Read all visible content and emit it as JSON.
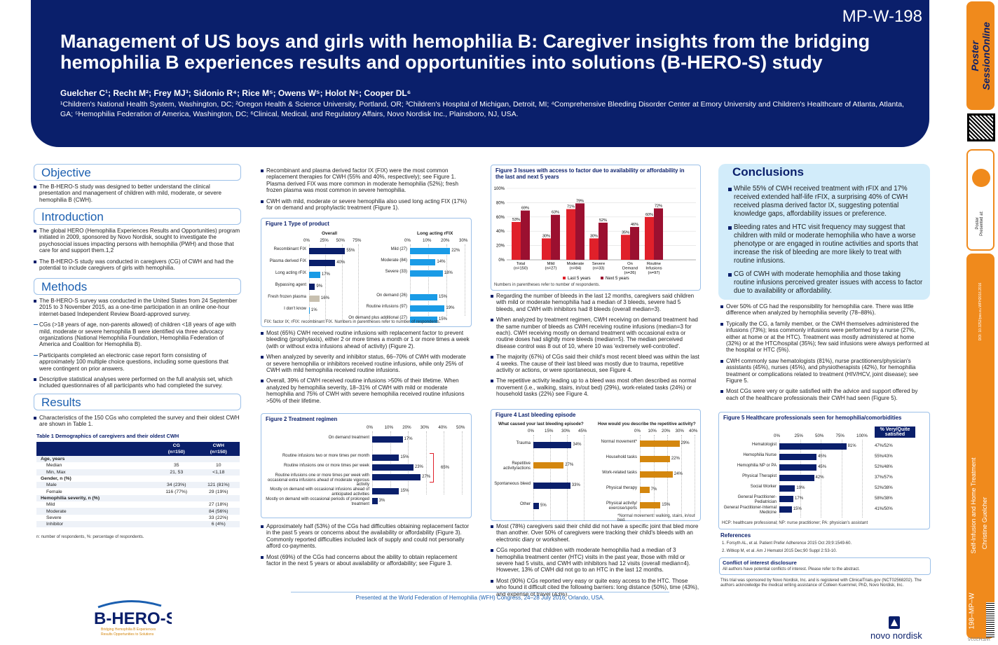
{
  "header": {
    "poster_id": "MP-W-198",
    "title": "Management of US boys and girls with hemophilia B: Caregiver insights from the bridging hemophilia B experiences results and opportunities into solutions (B-HERO-S) study",
    "authors": "Guelcher C¹; Recht M²; Frey MJ³; Sidonio R⁴; Rice M⁵; Owens W⁵; Holot N⁶; Cooper DL⁶",
    "affiliations": "¹Children's National Health System, Washington, DC; ²Oregon Health & Science University, Portland, OR; ³Children's Hospital of Michigan, Detroit, MI; ⁴Comprehensive Bleeding Disorder Center at Emory University and Children's Healthcare of Atlanta, Atlanta, GA; ⁵Hemophilia Federation of America, Washington, DC; ⁶Clinical, Medical, and Regulatory Affairs, Novo Nordisk Inc., Plainsboro, NJ, USA."
  },
  "objective": {
    "heading": "Objective",
    "text": "The B-HERO-S study was designed to better understand the clinical presentation and management of children with mild, moderate, or severe hemophilia B (CWH)."
  },
  "introduction": {
    "heading": "Introduction",
    "p1": "The global HERO (Hemophilia Experiences Results and Opportunities) program initiated in 2009, sponsored by Novo Nordisk, sought to investigate the psychosocial issues impacting persons with hemophilia (PWH) and those that care for and support them.1,2",
    "p2": "The B-HERO-S study was conducted in caregivers (CG) of CWH and had the potential to include caregivers of girls with hemophilia."
  },
  "methods": {
    "heading": "Methods",
    "p1": "The B-HERO-S survey was conducted in the United States from 24 September 2015 to 3 November 2015, as a one-time participation in an online one-hour internet-based Independent Review Board-approved survey.",
    "p2": "CGs (>18 years of age, non-parents allowed) of children <18 years of age with mild, moderate or severe hemophilia B were identified via three advocacy organizations (National Hemophilia Foundation, Hemophilia Federation of America and Coalition for Hemophilia B).",
    "p3": "Participants completed an electronic case report form consisting of approximately 100 multiple choice questions, including some questions that were contingent on prior answers.",
    "p4": "Descriptive statistical analyses were performed on the full analysis set, which included questionnaires of all participants who had completed the survey."
  },
  "results": {
    "heading": "Results",
    "p1": "Characteristics of the 150 CGs who completed the survey and their oldest CWH are shown in Table 1.",
    "table_title": "Table 1 Demographics of caregivers and their oldest CWH",
    "table_headers": [
      "",
      "CG\n(n=150)",
      "CWH\n(n=150)"
    ],
    "rows": [
      [
        "Age, years",
        "",
        ""
      ],
      [
        "Median",
        "35",
        "10"
      ],
      [
        "Min, Max",
        "21, 53",
        "<1,18"
      ],
      [
        "Gender, n (%)",
        "",
        ""
      ],
      [
        "Male",
        "34 (23%)",
        "121 (81%)"
      ],
      [
        "Female",
        "116 (77%)",
        "29 (19%)"
      ],
      [
        "Hemophilia severity, n (%)",
        "",
        ""
      ],
      [
        "Mild",
        "",
        "27 (18%)"
      ],
      [
        "Moderate",
        "",
        "84 (56%)"
      ],
      [
        "Severe",
        "",
        "33 (22%)"
      ],
      [
        "Inhibitor",
        "",
        "6 (4%)"
      ]
    ],
    "table_note": "n: number of respondents, %: percentage of respondents."
  },
  "col2": {
    "p1": "Recombinant and plasma derived factor IX (FIX) were the most common replacement therapies for CWH (55% and 40%, respectively); see Figure 1. Plasma derived FIX was more common in moderate hemophilia (52%); fresh frozen plasma was most common in severe hemophilia.",
    "p2": "CWH with mild, moderate or severe hemophilia also used long acting FIX (17%) for on demand and prophylactic treatment (Figure 1).",
    "p3": "Most (65%) CWH received routine infusions with replacement factor to prevent bleeding (prophylaxis), either 2 or more times a month or 1 or more times a week (with or without extra infusions ahead of activity) (Figure 2).",
    "p4": "When analyzed by severity and inhibitor status, 66–70% of CWH with moderate or severe hemophilia or inhibitors received routine infusions, while only 25% of CWH with mild hemophilia received routine infusions.",
    "p5": "Overall, 39% of CWH received routine infusions >50% of their lifetime. When analyzed by hemophilia severity, 18–31% of CWH with mild or moderate hemophilia and 75% of CWH with severe hemophilia received routine infusions >50% of their lifetime.",
    "p6": "Approximately half (53%) of the CGs had difficulties obtaining replacement factor in the past 5 years or concerns about the availability or affordability (Figure 3). Commonly reported difficulties included lack of supply and could not personally afford co-payments.",
    "p7": "Most (69%) of the CGs had concerns about the ability to obtain replacement factor in the next 5 years or about availability or affordability; see Figure 3."
  },
  "fig1": {
    "title": "Figure 1 Type of product",
    "left_title": "Overall",
    "right_title": "Long acting rFIX",
    "ticks": [
      "0%",
      "25%",
      "50%",
      "75%"
    ],
    "ticks_r": [
      "0%",
      "10%",
      "20%",
      "30%"
    ],
    "left": [
      {
        "label": "Recombinant FIX",
        "value": 55
      },
      {
        "label": "Plasma derived FIX",
        "value": 40
      },
      {
        "label": "Long acting rFIX",
        "value": 17
      },
      {
        "label": "Bypassing agent",
        "value": 9
      },
      {
        "label": "Fresh frozen plasma",
        "value": 16
      },
      {
        "label": "I don't know",
        "value": 1
      }
    ],
    "right": [
      {
        "label": "Mild (27)",
        "value": 22
      },
      {
        "label": "Moderate (84)",
        "value": 14
      },
      {
        "label": "Severe (33)",
        "value": 18
      },
      {
        "label": "On demand (26)",
        "value": 15
      },
      {
        "label": "Routine infusions (97)",
        "value": 19
      },
      {
        "label": "On demand plus additional (27)",
        "value": 15
      }
    ],
    "note": "FIX: factor IX; rFIX: recombinant FIX. Numbers in parentheses refer to number of respondents."
  },
  "fig2": {
    "title": "Figure 2 Treatment regimen",
    "ticks": [
      "0%",
      "10%",
      "20%",
      "30%",
      "40%",
      "50%"
    ],
    "brace": "65%",
    "bars": [
      {
        "label": "On demand treatment",
        "value": 17
      },
      {
        "label": "Routine infusions two or more times per month",
        "value": 15
      },
      {
        "label": "Routine infusions one or more times per week",
        "value": 23
      },
      {
        "label": "Routine infusions one or more times per week with occasional extra infusions ahead of moderate vigorous activity",
        "value": 27
      },
      {
        "label": "Mostly on demand with occasional infusions ahead of anticipated activities",
        "value": 15
      },
      {
        "label": "Mostly on demand with occasional periods of prolonged treatment",
        "value": 3
      }
    ]
  },
  "fig3": {
    "title": "Figure 3 Issues with access to factor due to availability or affordability in the last and next 5 years",
    "ticks": [
      "0%",
      "20%",
      "40%",
      "60%",
      "80%",
      "100%"
    ],
    "groups": [
      {
        "label": "Total\n(n=150)",
        "last": 53,
        "next": 69
      },
      {
        "label": "Mild\n(n=27)",
        "last": 30,
        "next": 63
      },
      {
        "label": "Moderate\n(n=84)",
        "last": 71,
        "next": 79
      },
      {
        "label": "Severe\n(n=33)",
        "last": 30,
        "next": 52
      },
      {
        "label": "On\nDemand\n(n=26)",
        "last": 35,
        "next": 46
      },
      {
        "label": "Routine\nInfusions\n(n=97)",
        "last": 60,
        "next": 72
      }
    ],
    "legend_last": "Last 5 years",
    "legend_next": "Next 5 years",
    "note": "Numbers in parentheses refer to number of respondents."
  },
  "col3": {
    "p1": "Regarding the number of bleeds in the last 12 months, caregivers said children with mild or moderate hemophilia had a median of 3 bleeds, severe had 5 bleeds, and CWH with inhibitors had 8 bleeds (overall median=3).",
    "p2": "When analyzed by treatment regimen, CWH receiving on demand treatment had the same number of bleeds as CWH receiving routine infusions (median=3 for each). CWH receiving mostly on demand treatment with occasional extra or routine doses had slightly more bleeds (median=5). The median perceived disease control was 8 out of 10, where 10 was 'extremely well-controlled'.",
    "p3": "The majority (67%) of CGs said their child's most recent bleed was within the last 4 weeks. The cause of their last bleed was mostly due to trauma, repetitive activity or actions, or were spontaneous, see Figure 4.",
    "p4": "The repetitive activity leading up to a bleed was most often described as normal movement (i.e., walking, stairs, in/out bed) (29%), work-related tasks (24%) or household tasks (22%) see Figure 4.",
    "p5": "Most (78%) caregivers said their child did not have a specific joint that bled more than another. Over 50% of caregivers were tracking their child's bleeds with an electronic diary or worksheet.",
    "p6": "CGs reported that children with moderate hemophilia had a median of 3 hemophilia treatment center (HTC) visits in the past year, those with mild or severe had 5 visits, and CWH with inhibitors had 12 visits (overall median=4). However, 13% of CWH did not go to an HTC in the last 12 months.",
    "p7": "Most (90%) CGs reported very easy or quite easy access to the HTC. Those who found it difficult cited the following barriers: long distance (50%), time (43%), and expense of travel (43%)."
  },
  "fig4": {
    "title": "Figure 4 Last bleeding episode",
    "left_title": "What caused your last bleeding episode?",
    "right_title": "How would you describe the repetitive activity?",
    "ticks": [
      "0%",
      "15%",
      "30%",
      "45%"
    ],
    "ticks_r": [
      "0%",
      "10%",
      "20%",
      "30%",
      "40%"
    ],
    "left": [
      {
        "label": "Trauma",
        "value": 34
      },
      {
        "label": "Repetitive activity/actions",
        "value": 27
      },
      {
        "label": "Spontaneous bleed",
        "value": 33
      },
      {
        "label": "Other",
        "value": 5
      }
    ],
    "right": [
      {
        "label": "Normal movement*",
        "value": 29
      },
      {
        "label": "Household tasks",
        "value": 22
      },
      {
        "label": "Work-related tasks",
        "value": 24
      },
      {
        "label": "Physical therapy",
        "value": 7
      },
      {
        "label": "Physical activity/ exercise/sports",
        "value": 15
      }
    ],
    "note": "*Normal movement: walking, stairs, in/out bed."
  },
  "conclusions": {
    "heading": "Conclusions",
    "c1": "While 55% of CWH received treatment with rFIX and 17% received extended half-life rFIX, a surprising 40% of CWH received plasma derived factor IX, suggesting potential knowledge gaps, affordability issues or preference.",
    "c2": "Bleeding rates and HTC visit frequency may suggest that children with mild or moderate hemophilia who have a worse phenotype or are engaged in routine activities and sports that increase the risk of bleeding are more likely to treat with routine infusions.",
    "c3": "CG of CWH with moderate hemophilia and those taking routine infusions perceived greater issues with access to factor due to availability or affordability."
  },
  "col4": {
    "p1": "Over 50% of CG had the responsibility for hemophilia care. There was little difference when analyzed by hemophilia severity (78–88%).",
    "p2": "Typically the CG, a family member, or the CWH themselves administered the infusions (73%); less commonly infusions were performed by a nurse (27%, either at home or at the HTC). Treatment was mostly administered at home (32%) or at the HTC/hospital (35%); few said infusions were always performed at the hospital or HTC (5%).",
    "p3": "CWH commonly saw hematologists (81%), nurse practitioners/physician's assistants (45%), nurses (45%), and physiotherapists (42%), for hemophilia treatment or complications related to treatment (HIV/HCV, joint disease); see Figure 5.",
    "p4": "Most CGs were very or quite satisfied with the advice and support offered by each of the healthcare professionals their CWH had seen (Figure 5)."
  },
  "fig5": {
    "title": "Figure 5 Healthcare professionals seen for hemophilia/comorbidities",
    "ticks": [
      "0%",
      "25%",
      "50%",
      "75%",
      "100%"
    ],
    "sat_header": "% Very/Quite satisfied",
    "bars": [
      {
        "label": "Hematologist",
        "value": 81,
        "sat": "47%/52%"
      },
      {
        "label": "Hemophilia Nurse",
        "value": 45,
        "sat": "55%/43%"
      },
      {
        "label": "Hemophilia NP or PA",
        "value": 45,
        "sat": "52%/48%"
      },
      {
        "label": "Physical Therapist",
        "value": 42,
        "sat": "37%/57%"
      },
      {
        "label": "Social Worker",
        "value": 19,
        "sat": "52%/38%"
      },
      {
        "label": "General Practitioner-Pediatrician",
        "value": 17,
        "sat": "58%/38%"
      },
      {
        "label": "General Practitioner-Internal Medicine",
        "value": 15,
        "sat": "41%/50%"
      }
    ],
    "note": "HCP: healthcare professional; NP: nurse practitioner; PA: physician's assistant"
  },
  "references": {
    "heading": "References",
    "r1": "1.  Forsyth AL, et al. Patient Prefer Adherence 2015 Oct 29;9:1549-60.",
    "r2": "2.  Witkop M, et al. Am J Hematol 2015 Dec;90 Suppl 2:S3-10."
  },
  "coi": {
    "heading": "Conflict of interest disclosure",
    "text": "All authors have potential conflicts of interest. Please refer to the abstract."
  },
  "sponsor": "This trial was sponsored by Novo Nordisk, Inc. and is registered with ClinicalTrials.gov (NCT02568202). The authors acknowledge the medical writing assistance of Colleen Kuemmel, PhD, Novo Nordisk, Inc.",
  "footer": "Presented at the World Federation of Hemophilia (WFH) Congress, 24–28 July 2016, Orlando, USA.",
  "logo": {
    "name": "B-HERO-S",
    "tag": "Bridging Hemophilia B Experiences\nResults Opportunities to Solutions"
  },
  "novo": "novo nordisk",
  "side": {
    "ps": "Poster SessionOnline",
    "presented": "Poster\nPresented at:",
    "doi": "DOI: 10.3252/pso.eu.WFH2016.2016",
    "session": "Self-Infusion and Home Treatment",
    "author": "Christine Guelcher",
    "code": "198–MP–W",
    "year": "WFH2016"
  },
  "colors": {
    "navy": "#0a1f6b",
    "blue": "#1b5fb0",
    "light": "#1a9be6",
    "orange": "#d4870f",
    "red": "#e0202a",
    "darkred": "#9b1030",
    "grey": "#c8c0b0"
  }
}
